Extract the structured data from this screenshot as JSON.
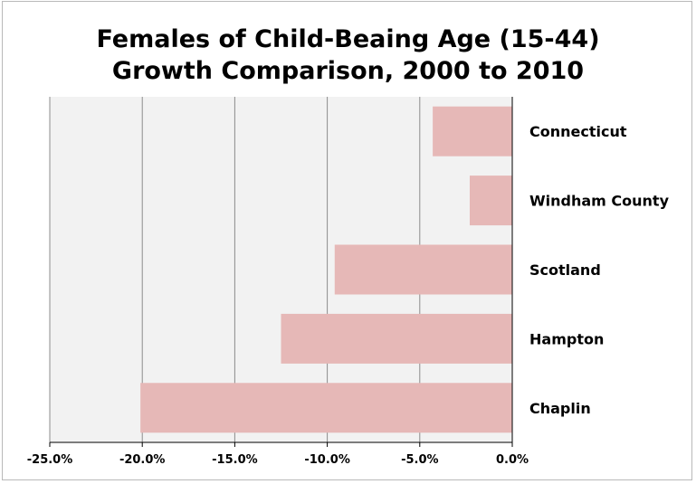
{
  "chart_data": {
    "type": "bar",
    "orientation": "horizontal",
    "title": [
      "Females of Child-Beaing Age (15-44)",
      "Growth Comparison, 2000 to 2010"
    ],
    "categories": [
      "Connecticut",
      "Windham County",
      "Scotland",
      "Hampton",
      "Chaplin"
    ],
    "values": [
      -4.3,
      -2.3,
      -9.6,
      -12.5,
      -20.1
    ],
    "unit": "%",
    "xlim": [
      -25.0,
      0.0
    ],
    "x_ticks": [
      -25.0,
      -20.0,
      -15.0,
      -10.0,
      -5.0,
      0.0
    ],
    "x_tick_labels": [
      "-25.0%",
      "-20.0%",
      "-15.0%",
      "-10.0%",
      "-5.0%",
      "0.0%"
    ],
    "grid": true,
    "legend": "none",
    "colors": {
      "bar": "#e6b8b7",
      "plot_background": "#f2f2f2",
      "gridline": "#8c8c8c",
      "axis": "#000000"
    }
  }
}
